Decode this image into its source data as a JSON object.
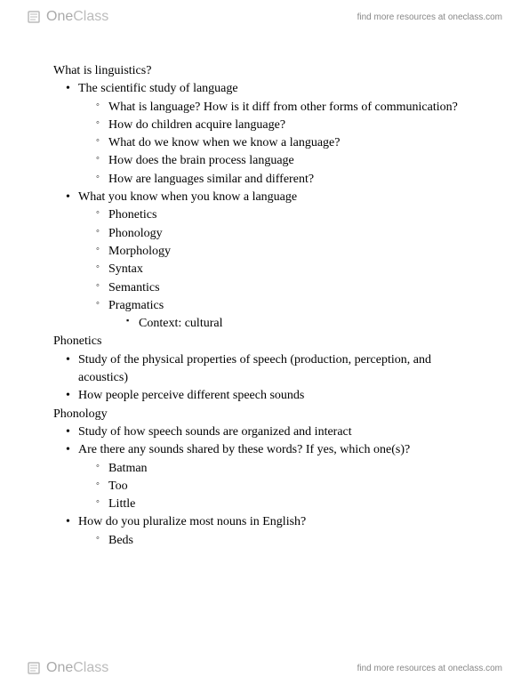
{
  "brand": {
    "one": "One",
    "class": "Class",
    "tagline": "find more resources at oneclass.com"
  },
  "notes": [
    {
      "lvl": 0,
      "text": "What is linguistics?"
    },
    {
      "lvl": 1,
      "text": "The scientific study of language"
    },
    {
      "lvl": 2,
      "text": "What is language? How is it diff from other forms of communication?"
    },
    {
      "lvl": 2,
      "text": "How do children acquire language?"
    },
    {
      "lvl": 2,
      "text": "What do we know when we know a language?"
    },
    {
      "lvl": 2,
      "text": "How does the brain process language"
    },
    {
      "lvl": 2,
      "text": "How are languages similar and different?"
    },
    {
      "lvl": 1,
      "text": "What you know when you know a language"
    },
    {
      "lvl": 2,
      "text": "Phonetics"
    },
    {
      "lvl": 2,
      "text": "Phonology"
    },
    {
      "lvl": 2,
      "text": "Morphology"
    },
    {
      "lvl": 2,
      "text": "Syntax"
    },
    {
      "lvl": 2,
      "text": "Semantics"
    },
    {
      "lvl": 2,
      "text": "Pragmatics"
    },
    {
      "lvl": 3,
      "text": "Context: cultural"
    },
    {
      "lvl": 0,
      "text": "Phonetics"
    },
    {
      "lvl": 1,
      "text": "Study of the physical properties of speech (production, perception, and acoustics)"
    },
    {
      "lvl": 1,
      "text": "How people perceive different speech sounds"
    },
    {
      "lvl": 0,
      "text": "Phonology"
    },
    {
      "lvl": 1,
      "text": "Study of how speech sounds are organized and interact"
    },
    {
      "lvl": 1,
      "text": "Are there any sounds shared by these words? If yes, which one(s)?"
    },
    {
      "lvl": 2,
      "text": "Batman"
    },
    {
      "lvl": 2,
      "text": "Too"
    },
    {
      "lvl": 2,
      "text": "Little"
    },
    {
      "lvl": 1,
      "text": "How do you pluralize most nouns in English?"
    },
    {
      "lvl": 2,
      "text": "Beds"
    }
  ]
}
